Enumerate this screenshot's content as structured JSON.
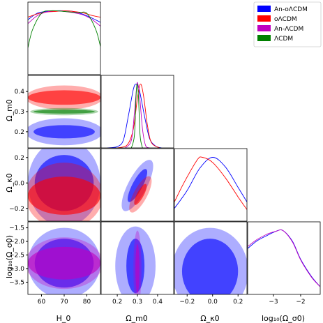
{
  "chart_data": {
    "type": "triangle",
    "legend": {
      "placement": "top-right",
      "entries": [
        {
          "label": "An-oΛCDM",
          "color": "#0000ff"
        },
        {
          "label": "oΛCDM",
          "color": "#ff0000"
        },
        {
          "label": "An-ΛCDM",
          "color": "#c000c0"
        },
        {
          "label": "ΛCDM",
          "color": "#008000"
        }
      ]
    },
    "parameters": [
      {
        "id": "H0",
        "label": "H_0",
        "range": [
          54,
          86
        ],
        "ticks": [
          60,
          70,
          80
        ],
        "tick_labels": [
          "60",
          "70",
          "80"
        ]
      },
      {
        "id": "Om",
        "label": "Ω_m0",
        "range": [
          0.12,
          0.48
        ],
        "ticks": [
          0.2,
          0.3,
          0.4
        ],
        "tick_labels": [
          "0.2",
          "0.3",
          "0.4"
        ]
      },
      {
        "id": "Ok",
        "label": "Ω_κ0",
        "range": [
          -0.3,
          0.27
        ],
        "ticks": [
          -0.2,
          0.0,
          0.2
        ],
        "tick_labels": [
          "−0.2",
          "0.0",
          "0.2"
        ]
      },
      {
        "id": "lg",
        "label": "log₁₀(Ω_σ0)",
        "range": [
          -3.95,
          -1.28
        ],
        "ticks": [
          -3.5,
          -3.0,
          -2.5,
          -2.0,
          -1.5
        ],
        "tick_labels": [
          "−3.5",
          "−3.0",
          "−2.5",
          "−2.0",
          "−1.5"
        ],
        "diag_ticks": [
          -3,
          -2
        ],
        "diag_tick_labels": [
          "−3",
          "−2"
        ]
      }
    ],
    "series": [
      {
        "name": "An-oΛCDM",
        "color": "#0000ff",
        "marginals": {
          "H0": [
            [
              54,
              0.86
            ],
            [
              58,
              0.96
            ],
            [
              62,
              0.99
            ],
            [
              66,
              1.0
            ],
            [
              70,
              1.0
            ],
            [
              74,
              0.99
            ],
            [
              78,
              0.95
            ],
            [
              82,
              0.89
            ],
            [
              86,
              0.82
            ]
          ],
          "Om": [
            [
              0.15,
              0.0
            ],
            [
              0.2,
              0.02
            ],
            [
              0.23,
              0.12
            ],
            [
              0.255,
              0.5
            ],
            [
              0.28,
              0.92
            ],
            [
              0.295,
              1.0
            ],
            [
              0.31,
              0.9
            ],
            [
              0.335,
              0.5
            ],
            [
              0.36,
              0.15
            ],
            [
              0.39,
              0.03
            ],
            [
              0.42,
              0.0
            ]
          ],
          "Ok": [
            [
              -0.3,
              0.2
            ],
            [
              -0.2,
              0.48
            ],
            [
              -0.1,
              0.83
            ],
            [
              0.0,
              1.0
            ],
            [
              0.1,
              0.85
            ],
            [
              0.2,
              0.53
            ],
            [
              0.27,
              0.3
            ]
          ],
          "lg": [
            [
              -3.95,
              0.72
            ],
            [
              -3.6,
              0.84
            ],
            [
              -3.2,
              0.93
            ],
            [
              -2.9,
              0.99
            ],
            [
              -2.65,
              1.0
            ],
            [
              -2.3,
              0.83
            ],
            [
              -2.0,
              0.55
            ],
            [
              -1.6,
              0.28
            ],
            [
              -1.28,
              0.12
            ]
          ]
        },
        "pairs": {
          "H0_Om": {
            "center": [
              70,
              0.2
            ],
            "inner": [
              13.5,
              0.033
            ],
            "outer": [
              17,
              0.067
            ]
          },
          "H0_Ok": {
            "center": [
              70,
              0.0
            ],
            "inner": [
              13,
              0.22
            ],
            "outer": [
              16,
              0.34
            ]
          },
          "H0_lg": {
            "center": [
              70,
              -2.8
            ],
            "inner": [
              13,
              0.9
            ],
            "outer": [
              16,
              1.3
            ]
          },
          "Om_Ok": {
            "center": [
              0.3,
              -0.02
            ],
            "inner": [
              0.11,
              0.03
            ],
            "outer": [
              0.17,
              0.055
            ],
            "angle_deg": -62
          },
          "Om_lg": {
            "center": [
              0.29,
              -2.9
            ],
            "inner": [
              0.045,
              1.0
            ],
            "outer": [
              0.1,
              1.45
            ]
          },
          "Ok_lg": {
            "center": [
              -0.02,
              -3.1
            ],
            "inner": [
              0.22,
              1.2
            ],
            "outer": [
              0.3,
              1.6
            ]
          }
        }
      },
      {
        "name": "oΛCDM",
        "color": "#ff0000",
        "marginals": {
          "H0": [
            [
              54,
              0.9
            ],
            [
              58,
              0.95
            ],
            [
              62,
              0.98
            ],
            [
              66,
              0.99
            ],
            [
              70,
              1.0
            ],
            [
              74,
              0.99
            ],
            [
              78,
              0.97
            ],
            [
              82,
              0.93
            ],
            [
              86,
              0.9
            ]
          ],
          "Om": [
            [
              0.2,
              0.0
            ],
            [
              0.25,
              0.05
            ],
            [
              0.28,
              0.3
            ],
            [
              0.3,
              0.78
            ],
            [
              0.315,
              1.0
            ],
            [
              0.33,
              0.82
            ],
            [
              0.35,
              0.35
            ],
            [
              0.37,
              0.08
            ],
            [
              0.41,
              0.0
            ]
          ],
          "Ok": [
            [
              -0.3,
              0.3
            ],
            [
              -0.22,
              0.62
            ],
            [
              -0.12,
              0.96
            ],
            [
              -0.08,
              1.0
            ],
            [
              0.0,
              0.92
            ],
            [
              0.1,
              0.68
            ],
            [
              0.2,
              0.38
            ],
            [
              0.27,
              0.18
            ]
          ]
        },
        "pairs": {
          "H0_Om": {
            "center": [
              70,
              0.37
            ],
            "inner": [
              16,
              0.036
            ],
            "outer": [
              17,
              0.06
            ]
          },
          "H0_Ok": {
            "center": [
              70,
              -0.1
            ],
            "inner": [
              16,
              0.15
            ],
            "outer": [
              17,
              0.26
            ]
          },
          "Om_Ok": {
            "center": [
              0.315,
              -0.09
            ],
            "inner": [
              0.07,
              0.02
            ],
            "outer": [
              0.12,
              0.04
            ],
            "angle_deg": -62
          }
        }
      },
      {
        "name": "An-ΛCDM",
        "color": "#c000c0",
        "marginals": {
          "H0": [
            [
              54,
              0.8
            ],
            [
              58,
              0.92
            ],
            [
              62,
              0.98
            ],
            [
              66,
              1.0
            ],
            [
              70,
              0.99
            ],
            [
              74,
              0.97
            ],
            [
              78,
              0.94
            ],
            [
              82,
              0.87
            ],
            [
              86,
              0.76
            ]
          ],
          "Om": [
            [
              0.24,
              0.0
            ],
            [
              0.27,
              0.12
            ],
            [
              0.285,
              0.55
            ],
            [
              0.297,
              0.98
            ],
            [
              0.302,
              1.0
            ],
            [
              0.31,
              0.85
            ],
            [
              0.325,
              0.3
            ],
            [
              0.34,
              0.04
            ],
            [
              0.36,
              0.0
            ]
          ],
          "lg": [
            [
              -3.95,
              0.75
            ],
            [
              -3.6,
              0.86
            ],
            [
              -3.2,
              0.95
            ],
            [
              -2.9,
              0.99
            ],
            [
              -2.65,
              1.0
            ],
            [
              -2.3,
              0.82
            ],
            [
              -2.0,
              0.54
            ],
            [
              -1.6,
              0.27
            ],
            [
              -1.28,
              0.12
            ]
          ]
        },
        "pairs": {
          "H0_lg": {
            "center": [
              70,
              -2.8
            ],
            "inner": [
              16,
              0.6
            ],
            "outer": [
              17,
              0.95
            ]
          },
          "Om_lg": {
            "center": [
              0.3,
              -3.0
            ],
            "inner": [
              0.01,
              0.9
            ],
            "outer": [
              0.02,
              1.4
            ]
          }
        }
      },
      {
        "name": "ΛCDM",
        "color": "#008000",
        "marginals": {
          "H0": [
            [
              54,
              0.42
            ],
            [
              56,
              0.7
            ],
            [
              60,
              0.96
            ],
            [
              64,
              1.0
            ],
            [
              70,
              0.99
            ],
            [
              76,
              0.97
            ],
            [
              80,
              0.96
            ],
            [
              84,
              0.7
            ],
            [
              86,
              0.44
            ]
          ],
          "Om": [
            [
              0.27,
              0.0
            ],
            [
              0.285,
              0.2
            ],
            [
              0.293,
              0.8
            ],
            [
              0.298,
              1.0
            ],
            [
              0.305,
              0.82
            ],
            [
              0.313,
              0.2
            ],
            [
              0.325,
              0.0
            ]
          ]
        },
        "pairs": {
          "H0_Om": {
            "center": [
              70,
              0.3
            ],
            "inner": [
              13.5,
              0.01
            ],
            "outer": [
              15,
              0.018
            ]
          }
        }
      }
    ]
  }
}
